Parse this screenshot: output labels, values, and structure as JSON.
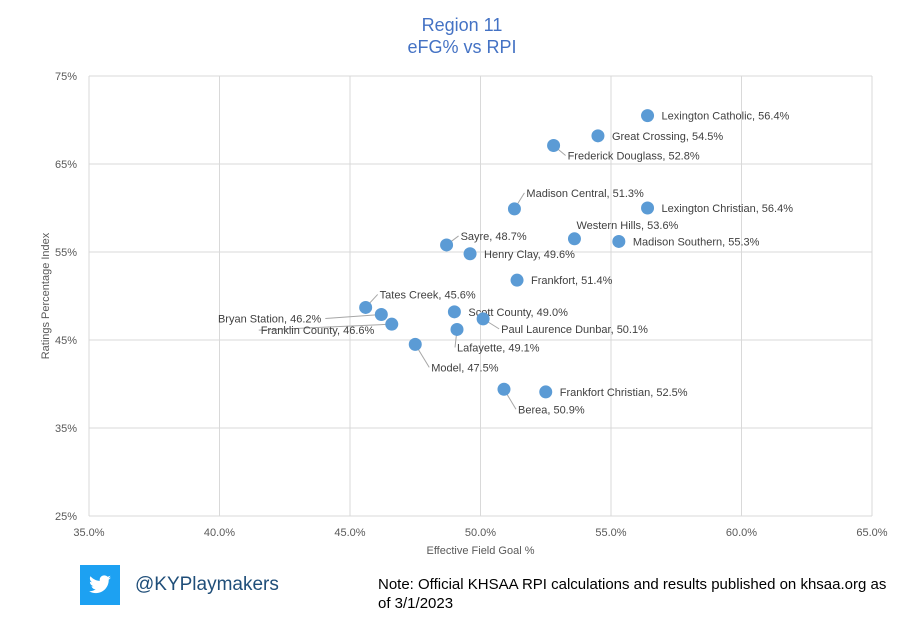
{
  "chart_data": {
    "type": "scatter",
    "title": "Region 11",
    "subtitle": "eFG% vs RPI",
    "xlabel": "Effective Field Goal %",
    "ylabel": "Ratings Percentage Index",
    "xlim": [
      35.0,
      65.0
    ],
    "ylim": [
      25,
      75
    ],
    "xticks": [
      "35.0%",
      "40.0%",
      "45.0%",
      "50.0%",
      "55.0%",
      "60.0%",
      "65.0%"
    ],
    "yticks": [
      "25%",
      "35%",
      "45%",
      "55%",
      "65%",
      "75%"
    ],
    "grid": true,
    "marker_color": "#5b9bd5",
    "points": [
      {
        "label": "Lexington Catholic, 56.4%",
        "x": 56.4,
        "y": 70.5
      },
      {
        "label": "Great Crossing, 54.5%",
        "x": 54.5,
        "y": 68.2
      },
      {
        "label": "Frederick Douglass, 52.8%",
        "x": 52.8,
        "y": 67.1
      },
      {
        "label": "Madison Central, 51.3%",
        "x": 51.3,
        "y": 59.9
      },
      {
        "label": "Lexington Christian, 56.4%",
        "x": 56.4,
        "y": 60.0
      },
      {
        "label": "Western Hills, 53.6%",
        "x": 53.6,
        "y": 56.5
      },
      {
        "label": "Madison Southern, 55.3%",
        "x": 55.3,
        "y": 56.2
      },
      {
        "label": "Sayre, 48.7%",
        "x": 48.7,
        "y": 55.8
      },
      {
        "label": "Henry Clay, 49.6%",
        "x": 49.6,
        "y": 54.8
      },
      {
        "label": "Frankfort, 51.4%",
        "x": 51.4,
        "y": 51.8
      },
      {
        "label": "Tates Creek, 45.6%",
        "x": 45.6,
        "y": 48.7
      },
      {
        "label": "Bryan Station, 46.2%",
        "x": 46.2,
        "y": 47.9
      },
      {
        "label": "Scott County, 49.0%",
        "x": 49.0,
        "y": 48.2
      },
      {
        "label": "Franklin County, 46.6%",
        "x": 46.6,
        "y": 46.8
      },
      {
        "label": "Paul Laurence Dunbar, 50.1%",
        "x": 50.1,
        "y": 47.4
      },
      {
        "label": "Lafayette, 49.1%",
        "x": 49.1,
        "y": 46.2
      },
      {
        "label": "Model, 47.5%",
        "x": 47.5,
        "y": 44.5
      },
      {
        "label": "Berea, 50.9%",
        "x": 50.9,
        "y": 39.4
      },
      {
        "label": "Frankfort Christian, 52.5%",
        "x": 52.5,
        "y": 39.1
      }
    ]
  },
  "footer": {
    "twitter_icon": "twitter-bird-icon",
    "handle": "@KYPlaymakers",
    "note": "Note: Official KHSAA RPI calculations and results published on khsaa.org as of 3/1/2023"
  }
}
